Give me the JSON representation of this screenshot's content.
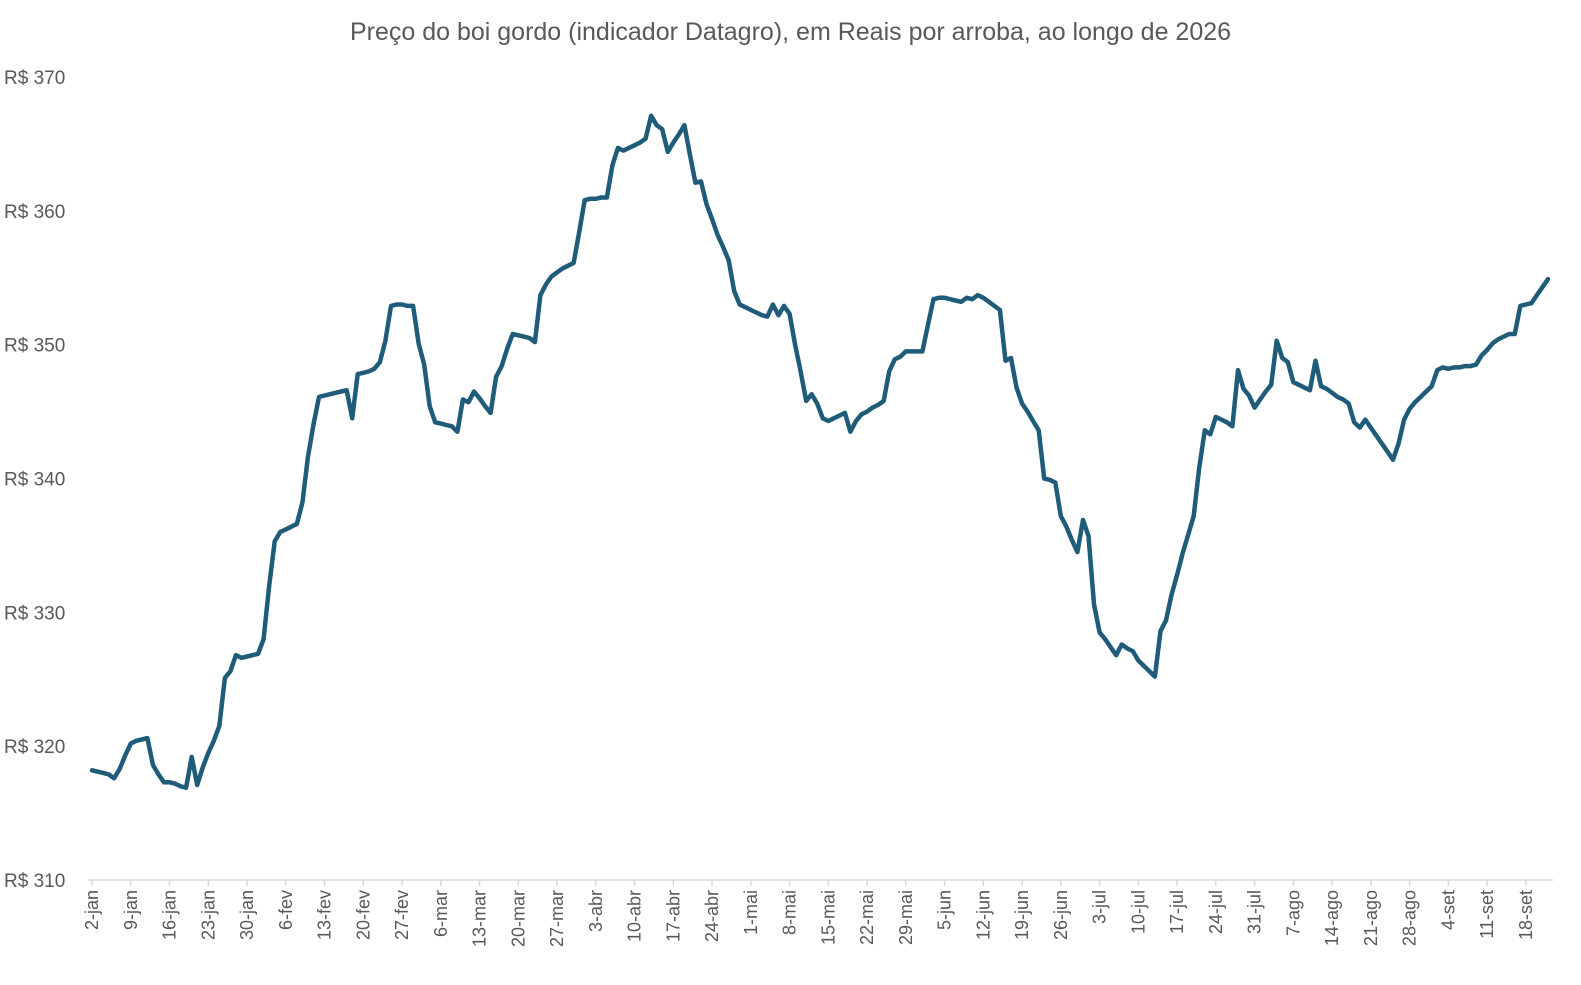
{
  "chart_data": {
    "type": "line",
    "title": "Preço do boi gordo (indicador Datagro), em Reais por arroba, ao longo de 2026",
    "xlabel": "",
    "ylabel": "",
    "ylim": [
      310,
      370
    ],
    "y_ticks": [
      "R$ 310",
      "R$ 320",
      "R$ 330",
      "R$ 340",
      "R$ 350",
      "R$ 360",
      "R$ 370"
    ],
    "grid": false,
    "legend": "none",
    "x_ticks": [
      "2-jan",
      "9-jan",
      "16-jan",
      "23-jan",
      "30-jan",
      "6-fev",
      "13-fev",
      "20-fev",
      "27-fev",
      "6-mar",
      "13-mar",
      "20-mar",
      "27-mar",
      "3-abr",
      "10-abr",
      "17-abr",
      "24-abr",
      "1-mai",
      "8-mai",
      "15-mai",
      "22-mai",
      "29-mai",
      "5-jun",
      "12-jun",
      "19-jun",
      "26-jun",
      "3-jul",
      "10-jul",
      "17-jul",
      "24-jul",
      "31-jul",
      "7-ago",
      "14-ago",
      "21-ago",
      "28-ago",
      "4-set",
      "11-set",
      "18-set"
    ],
    "line_color": "#1f5c7a",
    "series": [
      {
        "x": [
          "2-jan",
          "3-jan",
          "4-jan",
          "5-jan",
          "6-jan",
          "7-jan",
          "8-jan",
          "9-jan",
          "10-jan",
          "11-jan",
          "12-jan",
          "13-jan",
          "14-jan",
          "15-jan",
          "16-jan",
          "17-jan",
          "18-jan",
          "19-jan",
          "20-jan",
          "21-jan",
          "22-jan",
          "23-jan",
          "24-jan",
          "25-jan",
          "26-jan",
          "27-jan",
          "28-jan",
          "29-jan",
          "30-jan",
          "31-jan",
          "1-fev",
          "2-fev",
          "3-fev",
          "4-fev",
          "5-fev",
          "6-fev",
          "7-fev",
          "8-fev",
          "9-fev",
          "10-fev",
          "11-fev",
          "12-fev",
          "13-fev",
          "14-fev",
          "15-fev",
          "16-fev",
          "17-fev",
          "18-fev",
          "19-fev",
          "20-fev",
          "21-fev",
          "22-fev",
          "23-fev",
          "24-fev",
          "25-fev",
          "26-fev",
          "27-fev",
          "28-fev",
          "1-mar",
          "2-mar",
          "3-mar",
          "4-mar",
          "5-mar",
          "6-mar",
          "7-mar",
          "8-mar",
          "9-mar",
          "10-mar",
          "11-mar",
          "12-mar",
          "13-mar",
          "14-mar",
          "15-mar",
          "16-mar",
          "17-mar",
          "18-mar",
          "19-mar",
          "20-mar",
          "21-mar",
          "22-mar",
          "23-mar",
          "24-mar",
          "25-mar",
          "26-mar",
          "27-mar",
          "28-mar",
          "29-mar",
          "30-mar",
          "31-mar",
          "1-abr",
          "2-abr",
          "3-abr",
          "4-abr",
          "5-abr",
          "6-abr",
          "7-abr",
          "8-abr",
          "9-abr",
          "10-abr",
          "11-abr",
          "12-abr",
          "13-abr",
          "14-abr",
          "15-abr",
          "16-abr",
          "17-abr",
          "18-abr",
          "19-abr",
          "20-abr",
          "21-abr",
          "22-abr",
          "23-abr",
          "24-abr",
          "25-abr",
          "26-abr",
          "27-abr",
          "28-abr",
          "29-abr",
          "30-abr",
          "1-mai",
          "2-mai",
          "3-mai",
          "4-mai",
          "5-mai",
          "6-mai",
          "7-mai",
          "8-mai",
          "9-mai",
          "10-mai",
          "11-mai",
          "12-mai",
          "13-mai",
          "14-mai",
          "15-mai",
          "16-mai",
          "17-mai",
          "18-mai",
          "19-mai",
          "20-mai",
          "21-mai",
          "22-mai",
          "23-mai",
          "24-mai",
          "25-mai",
          "26-mai",
          "27-mai",
          "28-mai",
          "29-mai",
          "30-mai",
          "31-mai",
          "1-jun",
          "2-jun",
          "3-jun",
          "4-jun",
          "5-jun",
          "6-jun",
          "7-jun",
          "8-jun",
          "9-jun",
          "10-jun",
          "11-jun",
          "12-jun",
          "13-jun",
          "14-jun",
          "15-jun",
          "16-jun",
          "17-jun",
          "18-jun",
          "19-jun",
          "20-jun",
          "21-jun",
          "22-jun",
          "23-jun",
          "24-jun",
          "25-jun",
          "26-jun",
          "27-jun",
          "28-jun",
          "29-jun",
          "30-jun",
          "1-jul",
          "2-jul",
          "3-jul",
          "4-jul",
          "5-jul",
          "6-jul",
          "7-jul",
          "8-jul",
          "9-jul",
          "10-jul",
          "11-jul",
          "12-jul",
          "13-jul",
          "14-jul",
          "15-jul",
          "16-jul",
          "17-jul",
          "18-jul",
          "19-jul",
          "20-jul",
          "21-jul",
          "22-jul",
          "23-jul",
          "24-jul",
          "25-jul",
          "26-jul",
          "27-jul",
          "28-jul",
          "29-jul",
          "30-jul",
          "31-jul",
          "1-ago",
          "2-ago",
          "3-ago",
          "4-ago",
          "5-ago",
          "6-ago",
          "7-ago",
          "8-ago",
          "9-ago",
          "10-ago",
          "11-ago",
          "12-ago",
          "13-ago",
          "14-ago",
          "15-ago",
          "16-ago",
          "17-ago",
          "18-ago",
          "19-ago",
          "20-ago",
          "21-ago",
          "22-ago",
          "23-ago",
          "24-ago",
          "25-ago",
          "26-ago",
          "27-ago",
          "28-ago",
          "29-ago",
          "30-ago",
          "31-ago",
          "1-set",
          "2-set",
          "3-set",
          "4-set",
          "5-set",
          "6-set",
          "7-set",
          "8-set",
          "9-set",
          "10-set",
          "11-set",
          "12-set",
          "13-set",
          "14-set",
          "15-set",
          "16-set",
          "17-set",
          "18-set",
          "19-set",
          "20-set",
          "21-set",
          "22-set"
        ],
        "values": [
          318.2,
          318.1,
          318.0,
          317.9,
          317.6,
          318.3,
          319.3,
          320.2,
          320.4,
          320.5,
          320.6,
          318.6,
          317.9,
          317.3,
          317.3,
          317.2,
          317.0,
          316.9,
          319.2,
          317.1,
          318.4,
          319.5,
          320.4,
          321.5,
          325.1,
          325.6,
          326.8,
          326.6,
          326.7,
          326.8,
          326.9,
          328.0,
          332.0,
          335.3,
          336.0,
          336.2,
          336.4,
          336.6,
          338.2,
          341.6,
          344.0,
          346.1,
          346.2,
          346.3,
          346.4,
          346.5,
          346.6,
          344.5,
          347.8,
          347.9,
          348.0,
          348.2,
          348.7,
          350.3,
          352.9,
          353.0,
          353.0,
          352.9,
          352.9,
          350.1,
          348.5,
          345.4,
          344.2,
          344.1,
          344.0,
          343.9,
          343.5,
          345.9,
          345.7,
          346.5,
          346.0,
          345.4,
          344.9,
          347.6,
          348.4,
          349.7,
          350.8,
          350.7,
          350.6,
          350.5,
          350.2,
          353.7,
          354.5,
          355.1,
          355.4,
          355.7,
          355.9,
          356.1,
          358.4,
          360.8,
          360.9,
          360.9,
          361.0,
          361.0,
          363.4,
          364.7,
          364.5,
          364.7,
          364.9,
          365.1,
          365.4,
          367.1,
          366.4,
          366.1,
          364.4,
          365.1,
          365.7,
          366.4,
          364.2,
          362.1,
          362.2,
          360.5,
          359.4,
          358.2,
          357.3,
          356.3,
          354.0,
          353.0,
          352.8,
          352.6,
          352.4,
          352.2,
          352.1,
          353.0,
          352.2,
          352.9,
          352.3,
          350.0,
          348.0,
          345.8,
          346.3,
          345.6,
          344.5,
          344.3,
          344.5,
          344.7,
          344.9,
          343.5,
          344.3,
          344.8,
          345.0,
          345.3,
          345.5,
          345.8,
          348.0,
          348.9,
          349.1,
          349.5,
          349.5,
          349.5,
          349.5,
          351.5,
          353.4,
          353.5,
          353.5,
          353.4,
          353.3,
          353.2,
          353.5,
          353.4,
          353.7,
          353.5,
          353.2,
          352.9,
          352.6,
          348.8,
          349.0,
          346.8,
          345.6,
          345.0,
          344.3,
          343.6,
          340.0,
          339.9,
          339.7,
          337.2,
          336.4,
          335.4,
          334.5,
          336.9,
          335.7,
          330.6,
          328.5,
          328.0,
          327.4,
          326.8,
          327.6,
          327.3,
          327.1,
          326.4,
          326.0,
          325.6,
          325.2,
          328.6,
          329.4,
          331.3,
          332.8,
          334.4,
          335.8,
          337.2,
          340.8,
          343.6,
          343.3,
          344.6,
          344.4,
          344.2,
          343.9,
          348.1,
          346.7,
          346.2,
          345.3,
          345.9,
          346.5,
          347.0,
          350.3,
          349.0,
          348.7,
          347.2,
          347.0,
          346.8,
          346.6,
          348.8,
          346.9,
          346.7,
          346.4,
          346.1,
          345.9,
          345.6,
          344.2,
          343.8,
          344.4,
          343.8,
          343.2,
          342.6,
          342.0,
          341.4,
          342.6,
          344.4,
          345.2,
          345.7,
          346.1,
          346.5,
          346.9,
          348.1,
          348.3,
          348.2,
          348.3,
          348.3,
          348.4,
          348.4,
          348.5,
          349.2,
          349.6,
          350.1,
          350.4,
          350.6,
          350.8,
          350.8,
          352.9,
          353.0,
          353.1,
          353.7,
          354.3,
          354.9
        ]
      }
    ]
  }
}
